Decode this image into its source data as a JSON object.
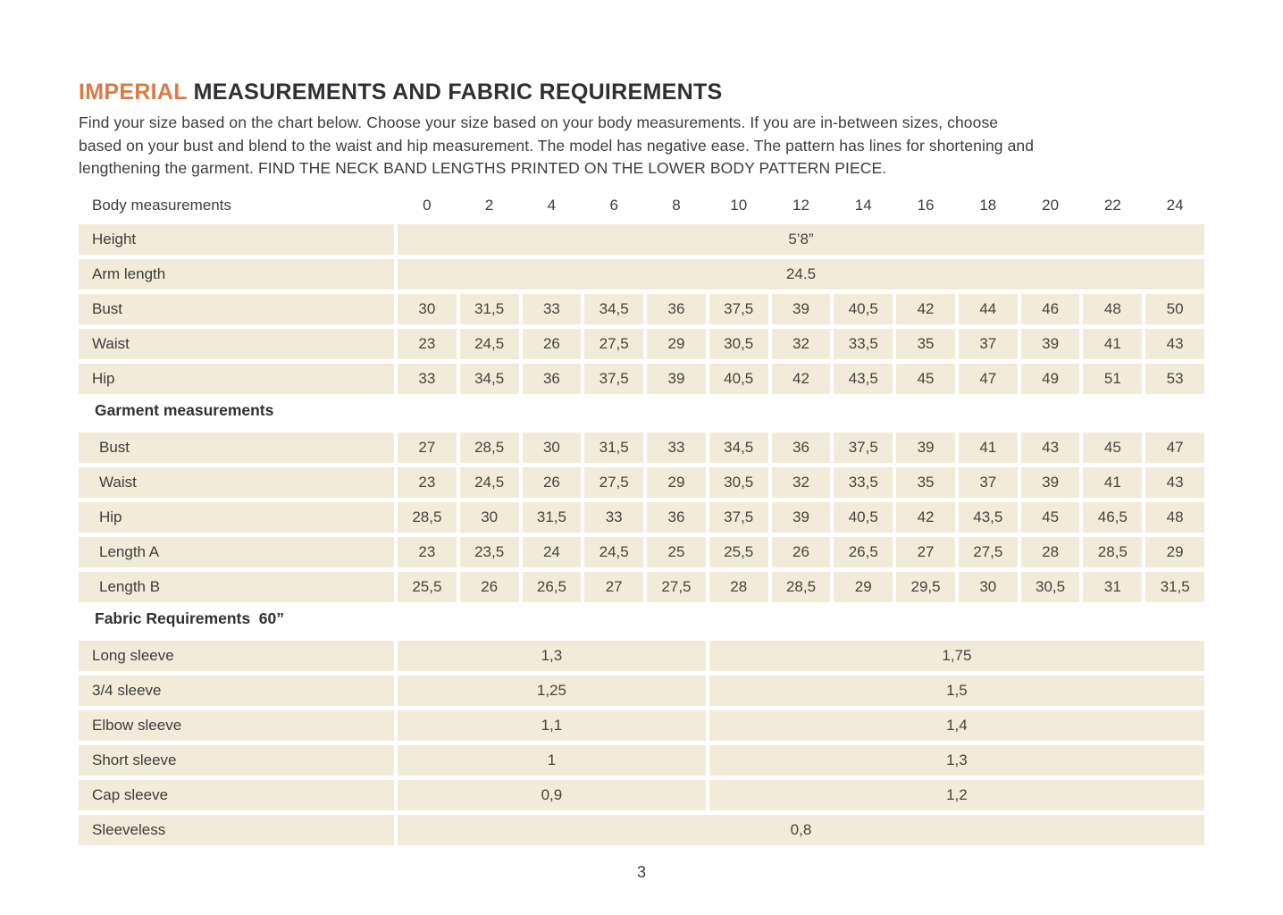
{
  "page": {
    "title_highlight": "IMPERIAL",
    "title_rest": " MEASUREMENTS AND FABRIC REQUIREMENTS",
    "intro_lines": [
      "Find your size based on the chart below. Choose your size based on your body measurements. If you are in-between sizes, choose",
      "based on your bust and blend to the waist and hip measurement. The model has negative ease. The pattern has lines for shortening and",
      "lengthening the garment. FIND THE NECK BAND LENGTHS PRINTED ON THE LOWER BODY PATTERN PIECE."
    ],
    "page_number": "3"
  },
  "colors": {
    "accent_orange": "#d87c46",
    "cell_beige": "#f2ebd9",
    "text_dark": "#3d3d3b"
  },
  "size_table": {
    "header_label": "Body measurements",
    "sizes": [
      "0",
      "2",
      "4",
      "6",
      "8",
      "10",
      "12",
      "14",
      "16",
      "18",
      "20",
      "22",
      "24"
    ],
    "body_rows": [
      {
        "label": "Height",
        "type": "full",
        "value": "5’8”"
      },
      {
        "label": "Arm length",
        "type": "full",
        "value": "24.5"
      },
      {
        "label": "Bust",
        "type": "cells",
        "values": [
          "30",
          "31,5",
          "33",
          "34,5",
          "36",
          "37,5",
          "39",
          "40,5",
          "42",
          "44",
          "46",
          "48",
          "50"
        ]
      },
      {
        "label": "Waist",
        "type": "cells",
        "values": [
          "23",
          "24,5",
          "26",
          "27,5",
          "29",
          "30,5",
          "32",
          "33,5",
          "35",
          "37",
          "39",
          "41",
          "43"
        ]
      },
      {
        "label": "Hip",
        "type": "cells",
        "values": [
          "33",
          "34,5",
          "36",
          "37,5",
          "39",
          "40,5",
          "42",
          "43,5",
          "45",
          "47",
          "49",
          "51",
          "53"
        ]
      }
    ],
    "garment_heading": "Garment measurements",
    "garment_rows": [
      {
        "label": "Bust",
        "type": "cells",
        "values": [
          "27",
          "28,5",
          "30",
          "31,5",
          "33",
          "34,5",
          "36",
          "37,5",
          "39",
          "41",
          "43",
          "45",
          "47"
        ]
      },
      {
        "label": "Waist",
        "type": "cells",
        "values": [
          "23",
          "24,5",
          "26",
          "27,5",
          "29",
          "30,5",
          "32",
          "33,5",
          "35",
          "37",
          "39",
          "41",
          "43"
        ]
      },
      {
        "label": "Hip",
        "type": "cells",
        "values": [
          "28,5",
          "30",
          "31,5",
          "33",
          "36",
          "37,5",
          "39",
          "40,5",
          "42",
          "43,5",
          "45",
          "46,5",
          "48"
        ]
      },
      {
        "label": "Length A",
        "type": "cells",
        "values": [
          "23",
          "23,5",
          "24",
          "24,5",
          "25",
          "25,5",
          "26",
          "26,5",
          "27",
          "27,5",
          "28",
          "28,5",
          "29"
        ]
      },
      {
        "label": "Length B",
        "type": "cells",
        "values": [
          "25,5",
          "26",
          "26,5",
          "27",
          "27,5",
          "28",
          "28,5",
          "29",
          "29,5",
          "30",
          "30,5",
          "31",
          "31,5"
        ]
      }
    ],
    "fabric_heading": "Fabric Requirements  60”",
    "fabric_rows": [
      {
        "label": "Long sleeve",
        "type": "split",
        "values": [
          "1,3",
          "1,75"
        ]
      },
      {
        "label": "3/4 sleeve",
        "type": "split",
        "values": [
          "1,25",
          "1,5"
        ]
      },
      {
        "label": "Elbow sleeve",
        "type": "split",
        "values": [
          "1,1",
          "1,4"
        ]
      },
      {
        "label": "Short sleeve",
        "type": "split",
        "values": [
          "1",
          "1,3"
        ]
      },
      {
        "label": "Cap sleeve",
        "type": "split",
        "values": [
          "0,9",
          "1,2"
        ]
      },
      {
        "label": "Sleeveless",
        "type": "full",
        "value": "0,8"
      }
    ]
  }
}
